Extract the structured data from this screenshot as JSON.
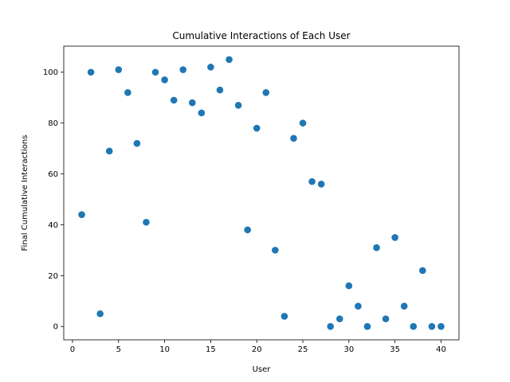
{
  "chart_data": {
    "type": "scatter",
    "title": "Cumulative Interactions of Each User",
    "xlabel": "User",
    "ylabel": "Final Cumulative Interactions",
    "xlim": [
      -0.95,
      41.95
    ],
    "ylim": [
      -5.25,
      110.25
    ],
    "xticks": [
      0,
      5,
      10,
      15,
      20,
      25,
      30,
      35,
      40
    ],
    "yticks": [
      0,
      20,
      40,
      60,
      80,
      100
    ],
    "grid": false,
    "marker_color": "#1f77b4",
    "series": [
      {
        "x": [
          1,
          2,
          3,
          4,
          5,
          6,
          7,
          8,
          9,
          10,
          11,
          12,
          13,
          14,
          15,
          16,
          17,
          18,
          19,
          20,
          21,
          22,
          23,
          24,
          25,
          26,
          27,
          28,
          29,
          30,
          31,
          32,
          33,
          34,
          35,
          36,
          37,
          38,
          39,
          40
        ],
        "y": [
          44,
          100,
          5,
          69,
          101,
          92,
          72,
          41,
          100,
          97,
          89,
          101,
          88,
          84,
          102,
          93,
          105,
          87,
          38,
          78,
          92,
          30,
          4,
          74,
          80,
          57,
          56,
          0,
          3,
          16,
          8,
          0,
          31,
          3,
          35,
          8,
          0,
          22,
          0,
          0
        ]
      }
    ]
  }
}
